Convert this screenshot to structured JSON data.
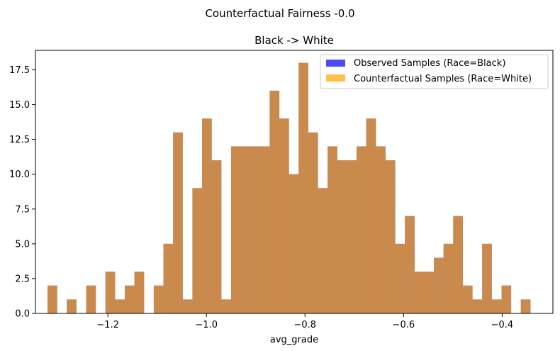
{
  "chart_data": {
    "type": "bar",
    "suptitle": "Counterfactual Fairness -0.0",
    "title": "Black -> White",
    "xlabel": "avg_grade",
    "ylabel": "",
    "xlim": [
      -1.347,
      -0.297
    ],
    "ylim": [
      0,
      18.9
    ],
    "grid": false,
    "legend_position": "top-right",
    "x_ticks": [
      -1.2,
      -1.0,
      -0.8,
      -0.6,
      -0.4
    ],
    "x_tick_labels": [
      "−1.2",
      "−1.0",
      "−0.8",
      "−0.6",
      "−0.4"
    ],
    "y_ticks": [
      0.0,
      2.5,
      5.0,
      7.5,
      10.0,
      12.5,
      15.0,
      17.5
    ],
    "y_tick_labels": [
      "0.0",
      "2.5",
      "5.0",
      "7.5",
      "10.0",
      "12.5",
      "15.0",
      "17.5"
    ],
    "bin_start": -1.3225,
    "bin_width": 0.0196,
    "series": [
      {
        "name": "Observed Samples (Race=Black)",
        "color": "#0000ff",
        "opacity": 0.7,
        "counts": [
          2,
          0,
          1,
          0,
          2,
          0,
          3,
          1,
          2,
          3,
          0,
          2,
          5,
          13,
          1,
          9,
          14,
          11,
          1,
          12,
          12,
          12,
          12,
          16,
          14,
          10,
          18,
          13,
          9,
          12,
          11,
          11,
          12,
          14,
          12,
          11,
          5,
          7,
          3,
          3,
          4,
          5,
          7,
          2,
          1,
          5,
          1,
          2,
          0,
          1
        ]
      },
      {
        "name": "Counterfactual Samples (Race=White)",
        "color": "#ffa500",
        "opacity": 0.7,
        "counts": [
          2,
          0,
          1,
          0,
          2,
          0,
          3,
          1,
          2,
          3,
          0,
          2,
          5,
          13,
          1,
          9,
          14,
          11,
          1,
          12,
          12,
          12,
          12,
          16,
          14,
          10,
          18,
          13,
          9,
          12,
          11,
          11,
          12,
          14,
          12,
          11,
          5,
          7,
          3,
          3,
          4,
          5,
          7,
          2,
          1,
          5,
          1,
          2,
          0,
          1
        ]
      }
    ]
  }
}
